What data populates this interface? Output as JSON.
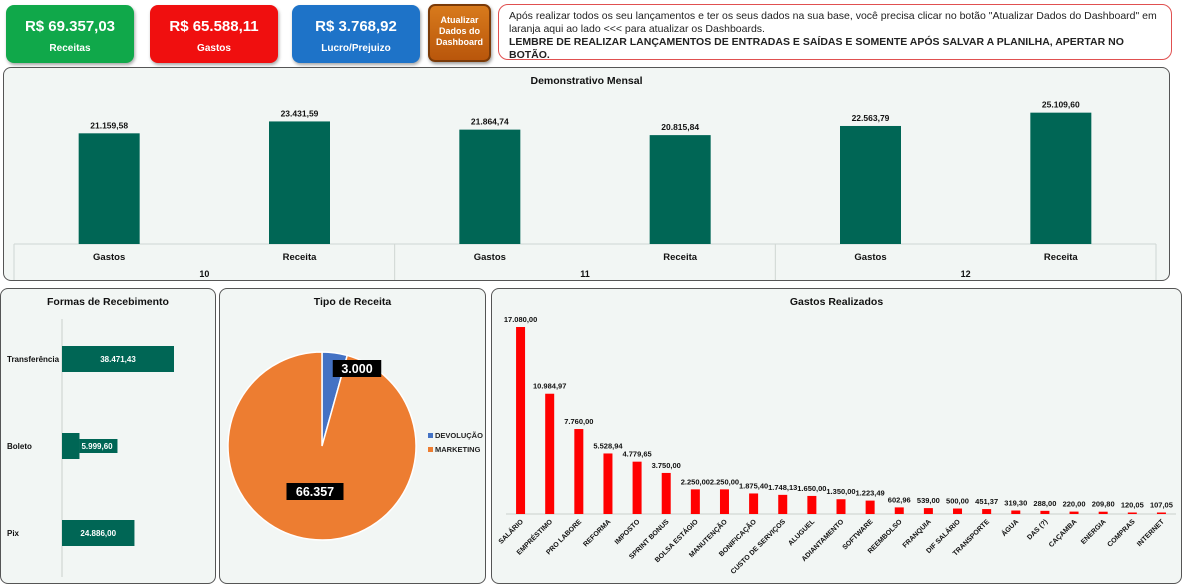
{
  "kpis": {
    "receitas": {
      "value": "R$ 69.357,03",
      "label": "Receitas",
      "color": "#10a84a"
    },
    "gastos": {
      "value": "R$ 65.588,11",
      "label": "Gastos",
      "color": "#f00f0f"
    },
    "lucro": {
      "value": "R$ 3.768,92",
      "label": "Lucro/Prejuizo",
      "color": "#1e73c8"
    }
  },
  "update_button": {
    "label_lines": [
      "Atualizar",
      "Dados do",
      "Dashboard"
    ]
  },
  "note": {
    "text": "Após realizar todos os seu lançamentos e ter os seus dados na sua base, você precisa clicar no botão \"Atualizar Dados do Dashboard\" em laranja aqui ao lado <<< para atualizar os Dashboards.",
    "bold": "LEMBRE DE REALIZAR LANÇAMENTOS DE ENTRADAS E SAÍDAS E SOMENTE APÓS SALVAR A PLANILHA, APERTAR NO BOTÃO."
  },
  "chart_data": [
    {
      "id": "monthly",
      "type": "bar",
      "title": "Demonstrativo Mensal",
      "groups": [
        "10",
        "11",
        "12"
      ],
      "categories": [
        "Gastos",
        "Receita",
        "Gastos",
        "Receita",
        "Gastos",
        "Receita"
      ],
      "values": [
        21159.58,
        23431.59,
        21864.74,
        20815.84,
        22563.79,
        25109.6
      ],
      "labels": [
        "21.159,58",
        "23.431,59",
        "21.864,74",
        "20.815,84",
        "22.563,79",
        "25.109,60"
      ],
      "color": "#006655"
    },
    {
      "id": "recebimento",
      "type": "bar",
      "orientation": "horizontal",
      "title": "Formas de Recebimento",
      "categories": [
        "Transferência",
        "Boleto",
        "Pix"
      ],
      "values": [
        38471.43,
        5999.6,
        24886.0
      ],
      "labels": [
        "38.471,43",
        "5.999,60",
        "24.886,00"
      ],
      "color": "#006655"
    },
    {
      "id": "tipo",
      "type": "pie",
      "title": "Tipo de Receita",
      "categories": [
        "DEVOLUÇÃO",
        "MARKETING"
      ],
      "values": [
        3000,
        66357
      ],
      "labels": [
        "3.000",
        "66.357"
      ],
      "colors": [
        "#4472c4",
        "#ed7d31"
      ],
      "legend": "right"
    },
    {
      "id": "gastos",
      "type": "bar",
      "title": "Gastos Realizados",
      "categories": [
        "SALÁRIO",
        "EMPRÉSTIMO",
        "PRO LABORE",
        "REFORMA",
        "IMPOSTO",
        "SPRINT BONUS",
        "BOLSA ESTÁGIO",
        "MANUTENÇÃO",
        "BONIFICAÇÃO",
        "CUSTO DE SERVIÇOS",
        "ALUGUEL",
        "ADIANTAMENTO",
        "SOFTWARE",
        "REEMBOLSO",
        "FRANQUIA",
        "DIF SALÁRIO",
        "TRANSPORTE",
        "ÁGUA",
        "DAS (?)",
        "CAÇAMBA",
        "ENERGIA",
        "COMPRAS",
        "INTERNET"
      ],
      "values": [
        17080,
        10984.97,
        7760,
        5528.94,
        4779.65,
        3750,
        2250,
        2250,
        1875.4,
        1748.13,
        1650,
        1350,
        1223.49,
        602.96,
        539,
        500,
        451.37,
        319.3,
        288,
        220,
        209.8,
        120.05,
        107.05
      ],
      "labels": [
        "17.080,00",
        "10.984,97",
        "7.760,00",
        "5.528,94",
        "4.779,65",
        "3.750,00",
        "2.250,00",
        "2.250,00",
        "1.875,40",
        "1.748,13",
        "1.650,00",
        "1.350,00",
        "1.223,49",
        "602,96",
        "539,00",
        "500,00",
        "451,37",
        "319,30",
        "288,00",
        "220,00",
        "209,80",
        "120,05",
        "107,05"
      ],
      "color": "#ff0000"
    }
  ]
}
